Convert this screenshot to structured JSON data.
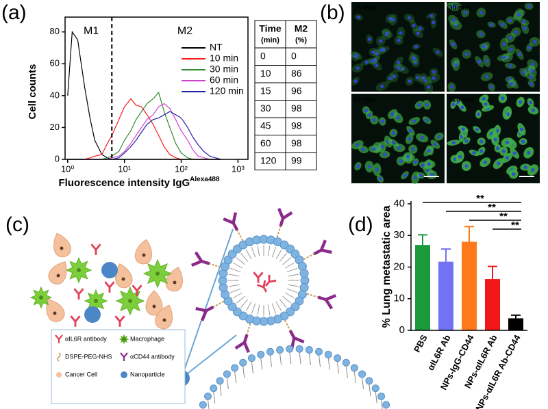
{
  "panel_labels": [
    "(a)",
    "(b)",
    "(c)",
    "(d)"
  ],
  "chart_data": [
    {
      "type": "line",
      "ylabel": "Cell counts",
      "xlabel": "Fluorescence intensity IgG",
      "xlabel_sup": "Alexa488",
      "x": [
        1,
        1.2,
        1.5,
        2,
        2.5,
        3,
        4,
        5,
        6,
        8,
        10,
        13,
        16,
        20,
        25,
        32,
        40,
        50,
        63,
        80,
        100,
        130,
        160,
        200,
        250,
        320,
        400,
        500
      ],
      "log_x": true,
      "xlim": [
        0.9,
        1500
      ],
      "xticks": [
        {
          "value": 1,
          "label": "10⁰"
        },
        {
          "value": 10,
          "label": "10¹"
        },
        {
          "value": 100,
          "label": "10²"
        },
        {
          "value": 1000,
          "label": "10³"
        }
      ],
      "ylim": [
        0,
        85
      ],
      "yticks": [
        0,
        20,
        40,
        60,
        80
      ],
      "gate": 6,
      "annotations": [
        "M1",
        "M2"
      ],
      "legend": "upper right",
      "series": [
        {
          "name": "NT",
          "color": "#000000",
          "values": [
            40,
            80,
            75,
            45,
            25,
            12,
            3,
            1,
            0,
            0,
            0,
            0,
            0,
            0,
            0,
            0,
            0,
            0,
            0,
            0,
            0,
            0,
            0,
            0,
            0,
            0,
            0,
            0
          ]
        },
        {
          "name": "10 min",
          "color": "#ff1a1a",
          "values": [
            0,
            0,
            0,
            0,
            1,
            2,
            3,
            10,
            15,
            25,
            33,
            38,
            34,
            33,
            28,
            22,
            15,
            8,
            3,
            1,
            0,
            0,
            0,
            0,
            0,
            0,
            0,
            0
          ]
        },
        {
          "name": "30 min",
          "color": "#2e8b2e",
          "values": [
            0,
            0,
            0,
            0,
            0,
            0,
            0,
            1,
            2,
            5,
            12,
            18,
            25,
            30,
            35,
            38,
            42,
            30,
            20,
            10,
            4,
            1,
            0,
            0,
            0,
            0,
            0,
            0
          ]
        },
        {
          "name": "60 min",
          "color": "#cc44cc",
          "values": [
            0,
            0,
            0,
            0,
            0,
            0,
            0,
            0,
            1,
            2,
            5,
            10,
            15,
            20,
            25,
            28,
            33,
            35,
            32,
            25,
            18,
            12,
            6,
            2,
            1,
            0,
            0,
            0
          ]
        },
        {
          "name": "120 min",
          "color": "#2222aa",
          "values": [
            0,
            0,
            0,
            0,
            0,
            0,
            0,
            0,
            0,
            1,
            4,
            8,
            12,
            17,
            22,
            25,
            26,
            28,
            30,
            28,
            26,
            20,
            14,
            9,
            5,
            2,
            1,
            0
          ]
        }
      ]
    },
    {
      "type": "bar",
      "ylabel": "% Lung metastatic area",
      "categories": [
        "PBS",
        "αIL6R Ab",
        "NPs-IgG-CD44",
        "NPs-αIL6R Ab",
        "NPs-αIL6R Ab-CD44"
      ],
      "values": [
        27,
        21.7,
        28,
        16.2,
        3.8
      ],
      "errors": [
        3.2,
        4,
        4.8,
        4,
        1
      ],
      "colors": [
        "#1a9a3a",
        "#7272f2",
        "#ff7a1a",
        "#f01818",
        "#000000"
      ],
      "ylim": [
        0,
        40
      ],
      "yticks": [
        0,
        10,
        20,
        30,
        40
      ],
      "significance": [
        {
          "label": "**",
          "from": 0,
          "to": 4
        },
        {
          "label": "**",
          "from": 1,
          "to": 4
        },
        {
          "label": "**",
          "from": 2,
          "to": 4
        },
        {
          "label": "**",
          "from": 3,
          "to": 4
        }
      ]
    }
  ],
  "table": {
    "columns": [
      {
        "label": "Time",
        "unit": "(min)"
      },
      {
        "label": "M2",
        "unit": "(%)"
      }
    ],
    "rows": [
      [
        "0",
        "0"
      ],
      [
        "10",
        "86"
      ],
      [
        "15",
        "96"
      ],
      [
        "30",
        "98"
      ],
      [
        "45",
        "98"
      ],
      [
        "60",
        "98"
      ],
      [
        "120",
        "99"
      ]
    ]
  },
  "micrographs": [
    {
      "label": "15 min"
    },
    {
      "label": "30 min"
    },
    {
      "label": "60 min"
    },
    {
      "label": "120 min"
    }
  ],
  "diagram": {
    "legend": [
      "αIL6R antibody",
      "Macrophage",
      "DSPE-PEG-NHS",
      "αCD44 antibody",
      "Cancer Cell",
      "Nanoparticle"
    ]
  }
}
